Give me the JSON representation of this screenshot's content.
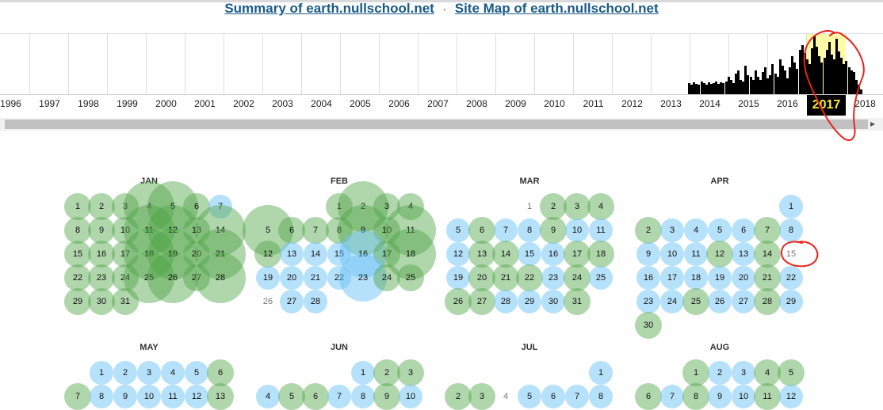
{
  "header": {
    "summary_link": "Summary of earth.nullschool.net",
    "separator": "·",
    "sitemap_link": "Site Map of earth.nullschool.net"
  },
  "timeline": {
    "years": [
      "1996",
      "1997",
      "1998",
      "1999",
      "2000",
      "2001",
      "2002",
      "2003",
      "2004",
      "2005",
      "2006",
      "2007",
      "2008",
      "2009",
      "2010",
      "2011",
      "2012",
      "2013",
      "2014",
      "2015",
      "2016",
      "2017",
      "2018"
    ],
    "selected_year": "2017"
  },
  "months": [
    {
      "name": "JAN",
      "start_weekday": 0,
      "days": 31,
      "captures": {
        "1": "g",
        "2": "g",
        "3": "g",
        "4": "G",
        "5": "G",
        "6": "g",
        "7": "b",
        "8": "g",
        "9": "g",
        "10": "g",
        "11": "G",
        "12": "G",
        "13": "g",
        "14": "G",
        "15": "g",
        "16": "g",
        "17": "g",
        "18": "G",
        "19": "G",
        "20": "g",
        "21": "G",
        "22": "g",
        "23": "g",
        "24": "g",
        "25": "G",
        "26": "G",
        "27": "g",
        "28": "G",
        "29": "g",
        "30": "g",
        "31": "g"
      }
    },
    {
      "name": "FEB",
      "start_weekday": 3,
      "days": 28,
      "captures": {
        "1": "g",
        "2": "G",
        "3": "g",
        "4": "g",
        "5": "G",
        "6": "g",
        "7": "g",
        "8": "g",
        "9": "G",
        "10": "g",
        "11": "G",
        "12": "g",
        "13": "b",
        "14": "b",
        "15": "b",
        "16": "B",
        "17": "g",
        "18": "G",
        "19": "b",
        "20": "b",
        "21": "b",
        "22": "b",
        "23": "B",
        "24": "g",
        "25": "g",
        "26": "",
        "27": "b",
        "28": "b"
      }
    },
    {
      "name": "MAR",
      "start_weekday": 3,
      "days": 31,
      "captures": {
        "1": "",
        "2": "g",
        "3": "g",
        "4": "g",
        "5": "b",
        "6": "g",
        "7": "b",
        "8": "b",
        "9": "g",
        "10": "b",
        "11": "b",
        "12": "b",
        "13": "g",
        "14": "g",
        "15": "b",
        "16": "b",
        "17": "g",
        "18": "g",
        "19": "b",
        "20": "g",
        "21": "g",
        "22": "g",
        "23": "b",
        "24": "g",
        "25": "b",
        "26": "g",
        "27": "g",
        "28": "b",
        "29": "b",
        "30": "b",
        "31": "g"
      }
    },
    {
      "name": "APR",
      "start_weekday": 6,
      "days": 30,
      "captures": {
        "1": "b",
        "2": "g",
        "3": "b",
        "4": "b",
        "5": "b",
        "6": "b",
        "7": "g",
        "8": "b",
        "9": "b",
        "10": "b",
        "11": "b",
        "12": "g",
        "13": "b",
        "14": "g",
        "15": "",
        "16": "b",
        "17": "b",
        "18": "b",
        "19": "b",
        "20": "b",
        "21": "g",
        "22": "b",
        "23": "b",
        "24": "b",
        "25": "g",
        "26": "b",
        "27": "b",
        "28": "g",
        "29": "b",
        "30": "g"
      }
    },
    {
      "name": "MAY",
      "start_weekday": 1,
      "days": 31,
      "captures": {
        "1": "b",
        "2": "b",
        "3": "b",
        "4": "b",
        "5": "b",
        "6": "g",
        "7": "g",
        "8": "b",
        "9": "b",
        "10": "b",
        "11": "b",
        "12": "b",
        "13": "g"
      }
    },
    {
      "name": "JUN",
      "start_weekday": 4,
      "days": 30,
      "captures": {
        "1": "b",
        "2": "g",
        "3": "g",
        "4": "b",
        "5": "g",
        "6": "g",
        "7": "b",
        "8": "b",
        "9": "g",
        "10": "b"
      }
    },
    {
      "name": "JUL",
      "start_weekday": 6,
      "days": 31,
      "captures": {
        "1": "b",
        "2": "g",
        "3": "g",
        "4": "",
        "5": "b",
        "6": "b",
        "7": "b",
        "8": "b"
      }
    },
    {
      "name": "AUG",
      "start_weekday": 2,
      "days": 31,
      "captures": {
        "1": "g",
        "2": "b",
        "3": "b",
        "4": "g",
        "5": "g",
        "6": "g",
        "7": "b",
        "8": "g",
        "9": "b",
        "10": "b",
        "11": "g",
        "12": "b"
      }
    }
  ],
  "colors": {
    "link": "#1a5a86",
    "capture_green": "#50a546",
    "capture_blue": "#6ec3f5",
    "highlight": "#fffaa8",
    "annotation": "#e8231d"
  }
}
